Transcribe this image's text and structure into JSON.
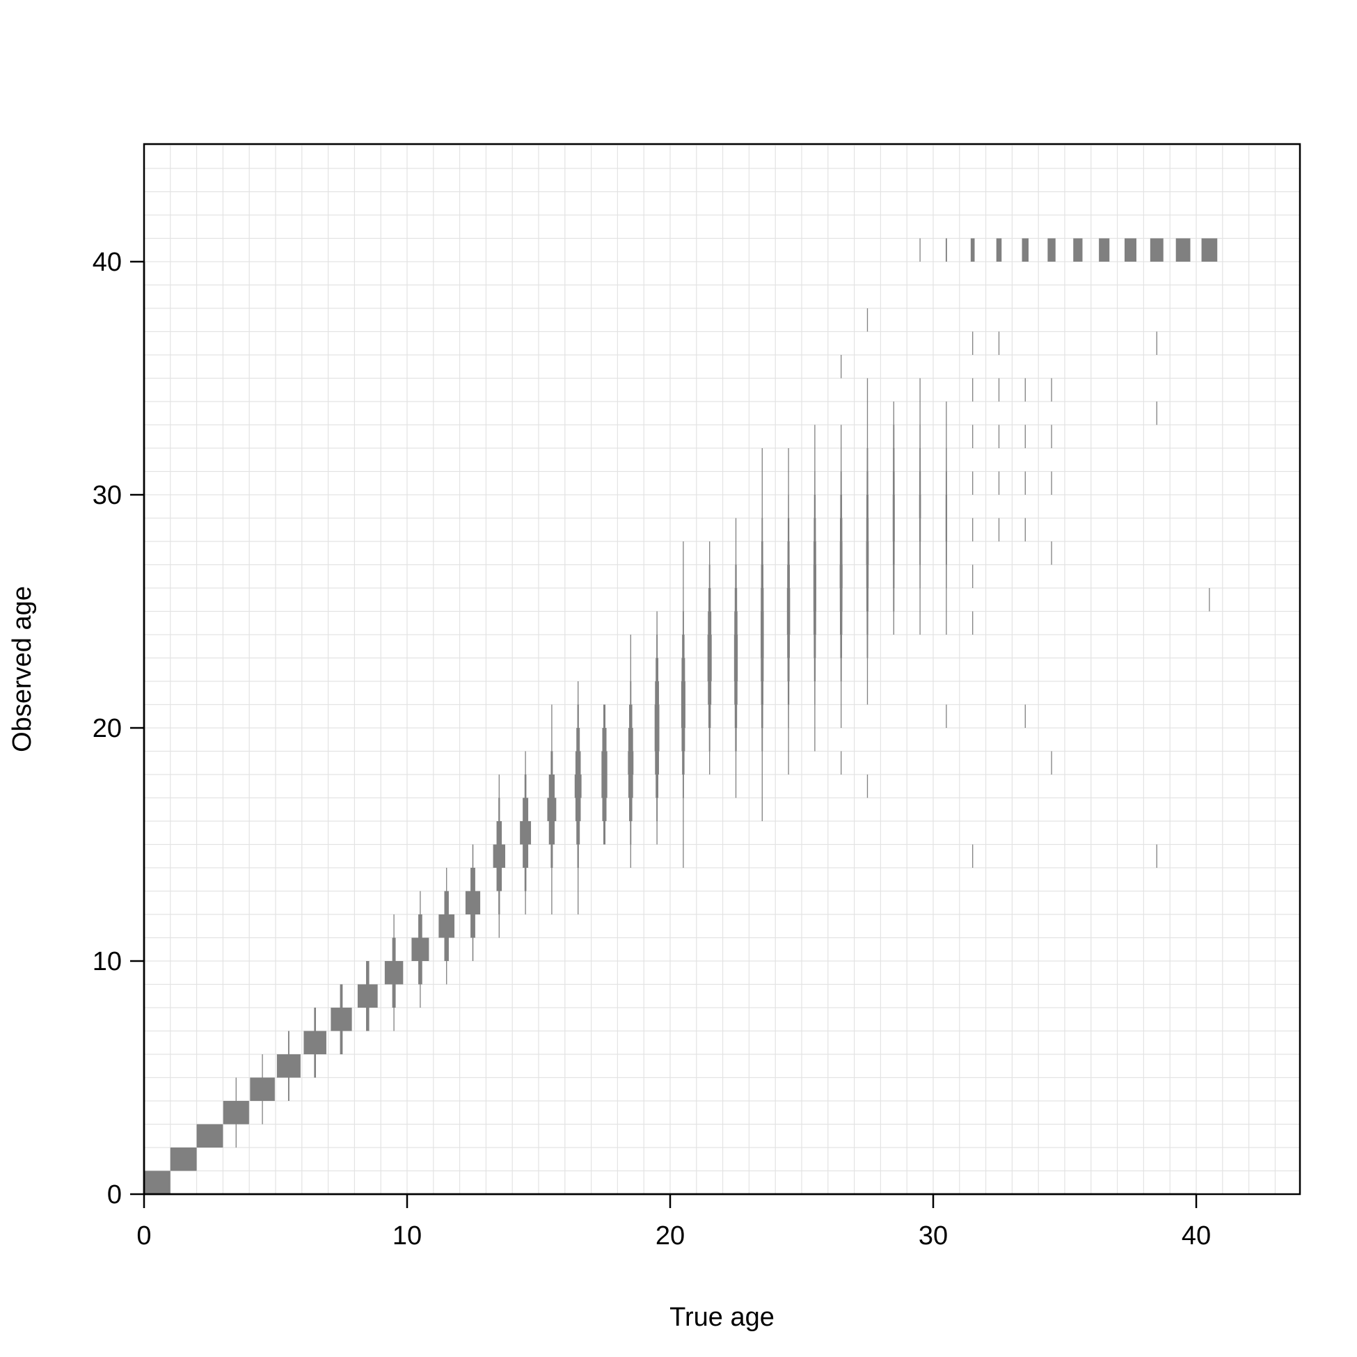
{
  "chart_data": {
    "type": "heatmap",
    "xlabel": "True age",
    "ylabel": "Observed age",
    "xlim": [
      0,
      44
    ],
    "ylim": [
      0,
      45
    ],
    "x_ticks": [
      0,
      10,
      20,
      30,
      40
    ],
    "y_ticks": [
      0,
      10,
      20,
      30,
      40
    ],
    "grid": true,
    "grid_step": 1,
    "colors": {
      "mark": "#808080",
      "grid": "#e3e3e3",
      "axis": "#000000"
    },
    "value_description": "Proportion of fish of each true age assigned to each observed age; each mark is centred in its true-age column and its width is proportional to the proportion.",
    "columns": [
      {
        "true_age": 0,
        "cells": [
          [
            0,
            1.0
          ]
        ]
      },
      {
        "true_age": 1,
        "cells": [
          [
            1,
            1.0
          ]
        ]
      },
      {
        "true_age": 2,
        "cells": [
          [
            2,
            1.0
          ]
        ]
      },
      {
        "true_age": 3,
        "cells": [
          [
            2,
            0.01
          ],
          [
            3,
            0.98
          ],
          [
            4,
            0.01
          ]
        ]
      },
      {
        "true_age": 4,
        "cells": [
          [
            3,
            0.03
          ],
          [
            4,
            0.94
          ],
          [
            5,
            0.03
          ]
        ]
      },
      {
        "true_age": 5,
        "cells": [
          [
            4,
            0.05
          ],
          [
            5,
            0.9
          ],
          [
            6,
            0.05
          ]
        ]
      },
      {
        "true_age": 6,
        "cells": [
          [
            5,
            0.07
          ],
          [
            6,
            0.86
          ],
          [
            7,
            0.07
          ]
        ]
      },
      {
        "true_age": 7,
        "cells": [
          [
            6,
            0.1
          ],
          [
            7,
            0.8
          ],
          [
            8,
            0.1
          ]
        ]
      },
      {
        "true_age": 8,
        "cells": [
          [
            7,
            0.12
          ],
          [
            8,
            0.76
          ],
          [
            9,
            0.12
          ]
        ]
      },
      {
        "true_age": 9,
        "cells": [
          [
            7,
            0.02
          ],
          [
            8,
            0.13
          ],
          [
            9,
            0.7
          ],
          [
            10,
            0.13
          ],
          [
            11,
            0.02
          ]
        ]
      },
      {
        "true_age": 10,
        "cells": [
          [
            8,
            0.02
          ],
          [
            9,
            0.15
          ],
          [
            10,
            0.66
          ],
          [
            11,
            0.15
          ],
          [
            12,
            0.02
          ]
        ]
      },
      {
        "true_age": 11,
        "cells": [
          [
            9,
            0.03
          ],
          [
            10,
            0.17
          ],
          [
            11,
            0.6
          ],
          [
            12,
            0.17
          ],
          [
            13,
            0.03
          ]
        ]
      },
      {
        "true_age": 12,
        "cells": [
          [
            10,
            0.04
          ],
          [
            11,
            0.18
          ],
          [
            12,
            0.56
          ],
          [
            13,
            0.18
          ],
          [
            14,
            0.04
          ]
        ]
      },
      {
        "true_age": 13,
        "cells": [
          [
            11,
            0.01
          ],
          [
            12,
            0.06
          ],
          [
            13,
            0.2
          ],
          [
            14,
            0.46
          ],
          [
            15,
            0.2
          ],
          [
            16,
            0.06
          ],
          [
            17,
            0.01
          ]
        ]
      },
      {
        "true_age": 14,
        "cells": [
          [
            12,
            0.01
          ],
          [
            13,
            0.07
          ],
          [
            14,
            0.21
          ],
          [
            15,
            0.42
          ],
          [
            16,
            0.21
          ],
          [
            17,
            0.07
          ],
          [
            18,
            0.01
          ]
        ]
      },
      {
        "true_age": 15,
        "cells": [
          [
            12,
            0.01
          ],
          [
            13,
            0.02
          ],
          [
            14,
            0.08
          ],
          [
            15,
            0.22
          ],
          [
            16,
            0.34
          ],
          [
            17,
            0.22
          ],
          [
            18,
            0.08
          ],
          [
            19,
            0.02
          ],
          [
            20,
            0.01
          ]
        ]
      },
      {
        "true_age": 16,
        "cells": [
          [
            12,
            0.01
          ],
          [
            13,
            0.02
          ],
          [
            14,
            0.06
          ],
          [
            15,
            0.13
          ],
          [
            16,
            0.2
          ],
          [
            17,
            0.26
          ],
          [
            18,
            0.2
          ],
          [
            19,
            0.13
          ],
          [
            20,
            0.06
          ],
          [
            21,
            0.02
          ]
        ]
      },
      {
        "true_age": 17,
        "cells": [
          [
            15,
            0.08
          ],
          [
            16,
            0.16
          ],
          [
            17,
            0.22
          ],
          [
            18,
            0.22
          ],
          [
            19,
            0.16
          ],
          [
            20,
            0.08
          ]
        ]
      },
      {
        "true_age": 18,
        "cells": [
          [
            14,
            0.02
          ],
          [
            15,
            0.05
          ],
          [
            16,
            0.12
          ],
          [
            17,
            0.18
          ],
          [
            18,
            0.21
          ],
          [
            19,
            0.18
          ],
          [
            20,
            0.12
          ],
          [
            21,
            0.05
          ],
          [
            22,
            0.02
          ],
          [
            23,
            0.01
          ]
        ]
      },
      {
        "true_age": 19,
        "cells": [
          [
            15,
            0.02
          ],
          [
            16,
            0.05
          ],
          [
            17,
            0.1
          ],
          [
            18,
            0.15
          ],
          [
            19,
            0.18
          ],
          [
            20,
            0.18
          ],
          [
            21,
            0.15
          ],
          [
            22,
            0.1
          ],
          [
            23,
            0.05
          ],
          [
            24,
            0.02
          ]
        ]
      },
      {
        "true_age": 20,
        "cells": [
          [
            14,
            0.01
          ],
          [
            15,
            0.01
          ],
          [
            16,
            0.03
          ],
          [
            17,
            0.05
          ],
          [
            18,
            0.09
          ],
          [
            19,
            0.13
          ],
          [
            20,
            0.16
          ],
          [
            21,
            0.16
          ],
          [
            22,
            0.13
          ],
          [
            23,
            0.09
          ],
          [
            24,
            0.05
          ],
          [
            25,
            0.03
          ],
          [
            26,
            0.02
          ],
          [
            27,
            0.01
          ]
        ]
      },
      {
        "true_age": 21,
        "cells": [
          [
            18,
            0.02
          ],
          [
            19,
            0.05
          ],
          [
            20,
            0.09
          ],
          [
            21,
            0.13
          ],
          [
            22,
            0.16
          ],
          [
            23,
            0.16
          ],
          [
            24,
            0.13
          ],
          [
            25,
            0.09
          ],
          [
            26,
            0.05
          ],
          [
            27,
            0.02
          ]
        ]
      },
      {
        "true_age": 22,
        "cells": [
          [
            17,
            0.01
          ],
          [
            18,
            0.03
          ],
          [
            19,
            0.06
          ],
          [
            20,
            0.09
          ],
          [
            21,
            0.12
          ],
          [
            22,
            0.14
          ],
          [
            23,
            0.14
          ],
          [
            24,
            0.12
          ],
          [
            25,
            0.09
          ],
          [
            26,
            0.06
          ],
          [
            27,
            0.03
          ],
          [
            28,
            0.01
          ]
        ]
      },
      {
        "true_age": 23,
        "cells": [
          [
            16,
            0.01
          ],
          [
            17,
            0.02
          ],
          [
            18,
            0.03
          ],
          [
            19,
            0.05
          ],
          [
            20,
            0.07
          ],
          [
            21,
            0.09
          ],
          [
            22,
            0.11
          ],
          [
            23,
            0.12
          ],
          [
            24,
            0.12
          ],
          [
            25,
            0.11
          ],
          [
            26,
            0.09
          ],
          [
            27,
            0.07
          ],
          [
            28,
            0.05
          ],
          [
            29,
            0.03
          ],
          [
            30,
            0.02
          ],
          [
            31,
            0.01
          ]
        ]
      },
      {
        "true_age": 24,
        "cells": [
          [
            18,
            0.01
          ],
          [
            19,
            0.02
          ],
          [
            20,
            0.04
          ],
          [
            21,
            0.06
          ],
          [
            22,
            0.08
          ],
          [
            23,
            0.1
          ],
          [
            24,
            0.12
          ],
          [
            25,
            0.12
          ],
          [
            26,
            0.1
          ],
          [
            27,
            0.08
          ],
          [
            28,
            0.06
          ],
          [
            29,
            0.04
          ],
          [
            30,
            0.02
          ],
          [
            31,
            0.01
          ]
        ]
      },
      {
        "true_age": 25,
        "cells": [
          [
            19,
            0.01
          ],
          [
            20,
            0.02
          ],
          [
            21,
            0.04
          ],
          [
            22,
            0.06
          ],
          [
            23,
            0.08
          ],
          [
            24,
            0.1
          ],
          [
            25,
            0.11
          ],
          [
            26,
            0.11
          ],
          [
            27,
            0.1
          ],
          [
            28,
            0.08
          ],
          [
            29,
            0.06
          ],
          [
            30,
            0.04
          ],
          [
            31,
            0.02
          ],
          [
            32,
            0.01
          ]
        ]
      },
      {
        "true_age": 26,
        "cells": [
          [
            18,
            0.01
          ],
          [
            20,
            0.02
          ],
          [
            21,
            0.03
          ],
          [
            22,
            0.05
          ],
          [
            23,
            0.07
          ],
          [
            24,
            0.09
          ],
          [
            25,
            0.1
          ],
          [
            26,
            0.11
          ],
          [
            27,
            0.1
          ],
          [
            28,
            0.09
          ],
          [
            29,
            0.07
          ],
          [
            30,
            0.05
          ],
          [
            31,
            0.03
          ],
          [
            32,
            0.02
          ],
          [
            35,
            0.01
          ]
        ]
      },
      {
        "true_age": 27,
        "cells": [
          [
            17,
            0.01
          ],
          [
            21,
            0.02
          ],
          [
            22,
            0.03
          ],
          [
            23,
            0.05
          ],
          [
            24,
            0.06
          ],
          [
            25,
            0.08
          ],
          [
            26,
            0.09
          ],
          [
            27,
            0.1
          ],
          [
            28,
            0.09
          ],
          [
            29,
            0.08
          ],
          [
            30,
            0.06
          ],
          [
            31,
            0.05
          ],
          [
            32,
            0.03
          ],
          [
            33,
            0.02
          ],
          [
            34,
            0.01
          ],
          [
            37,
            0.01
          ]
        ]
      },
      {
        "true_age": 28,
        "cells": [
          [
            24,
            0.03
          ],
          [
            25,
            0.05
          ],
          [
            26,
            0.06
          ],
          [
            27,
            0.07
          ],
          [
            28,
            0.08
          ],
          [
            29,
            0.08
          ],
          [
            30,
            0.07
          ],
          [
            31,
            0.06
          ],
          [
            32,
            0.05
          ],
          [
            33,
            0.03
          ]
        ]
      },
      {
        "true_age": 29,
        "cells": [
          [
            24,
            0.02
          ],
          [
            25,
            0.03
          ],
          [
            26,
            0.04
          ],
          [
            27,
            0.05
          ],
          [
            28,
            0.06
          ],
          [
            29,
            0.07
          ],
          [
            30,
            0.06
          ],
          [
            31,
            0.05
          ],
          [
            32,
            0.04
          ],
          [
            33,
            0.03
          ],
          [
            34,
            0.02
          ],
          [
            40,
            0.02
          ]
        ]
      },
      {
        "true_age": 30,
        "cells": [
          [
            20,
            0.01
          ],
          [
            24,
            0.02
          ],
          [
            25,
            0.03
          ],
          [
            26,
            0.04
          ],
          [
            27,
            0.05
          ],
          [
            28,
            0.06
          ],
          [
            29,
            0.06
          ],
          [
            30,
            0.05
          ],
          [
            31,
            0.04
          ],
          [
            32,
            0.03
          ],
          [
            33,
            0.02
          ],
          [
            40,
            0.05
          ]
        ]
      },
      {
        "true_age": 31,
        "cells": [
          [
            14,
            0.01
          ],
          [
            24,
            0.02
          ],
          [
            26,
            0.02
          ],
          [
            28,
            0.02
          ],
          [
            30,
            0.02
          ],
          [
            32,
            0.02
          ],
          [
            34,
            0.02
          ],
          [
            36,
            0.02
          ],
          [
            40,
            0.15
          ]
        ]
      },
      {
        "true_age": 32,
        "cells": [
          [
            28,
            0.02
          ],
          [
            30,
            0.02
          ],
          [
            32,
            0.02
          ],
          [
            34,
            0.02
          ],
          [
            36,
            0.02
          ],
          [
            40,
            0.2
          ]
        ]
      },
      {
        "true_age": 33,
        "cells": [
          [
            20,
            0.01
          ],
          [
            28,
            0.02
          ],
          [
            30,
            0.02
          ],
          [
            32,
            0.02
          ],
          [
            34,
            0.02
          ],
          [
            40,
            0.25
          ]
        ]
      },
      {
        "true_age": 34,
        "cells": [
          [
            18,
            0.01
          ],
          [
            27,
            0.02
          ],
          [
            30,
            0.02
          ],
          [
            32,
            0.02
          ],
          [
            34,
            0.02
          ],
          [
            40,
            0.3
          ]
        ]
      },
      {
        "true_age": 35,
        "cells": [
          [
            40,
            0.35
          ]
        ]
      },
      {
        "true_age": 36,
        "cells": [
          [
            40,
            0.4
          ]
        ]
      },
      {
        "true_age": 37,
        "cells": [
          [
            40,
            0.45
          ]
        ]
      },
      {
        "true_age": 38,
        "cells": [
          [
            14,
            0.01
          ],
          [
            33,
            0.02
          ],
          [
            36,
            0.02
          ],
          [
            40,
            0.5
          ]
        ]
      },
      {
        "true_age": 39,
        "cells": [
          [
            40,
            0.55
          ]
        ]
      },
      {
        "true_age": 40,
        "cells": [
          [
            25,
            0.01
          ],
          [
            40,
            0.6
          ]
        ]
      }
    ]
  }
}
